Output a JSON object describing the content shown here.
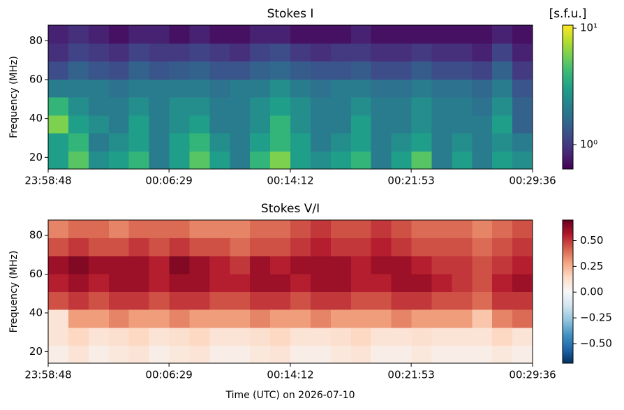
{
  "chart_data": [
    {
      "type": "heatmap",
      "title": "Stokes I",
      "ylabel": "Frequency (MHz)",
      "colormap": "viridis",
      "xlim": [
        0,
        1848
      ],
      "xticks": [
        {
          "value": 0,
          "label": "23:58:48"
        },
        {
          "value": 461,
          "label": "00:06:29"
        },
        {
          "value": 924,
          "label": "00:14:12"
        },
        {
          "value": 1385,
          "label": "00:21:53"
        },
        {
          "value": 1848,
          "label": "00:29:36"
        }
      ],
      "ylim": [
        14,
        88
      ],
      "yticks": [
        20,
        40,
        60,
        80
      ],
      "xbins": [
        0,
        77,
        154,
        231,
        308,
        385,
        462,
        539,
        616,
        693,
        770,
        847,
        924,
        1001,
        1078,
        1155,
        1232,
        1309,
        1386,
        1463,
        1540,
        1617,
        1694,
        1771,
        1848
      ],
      "ybins": [
        14,
        23.25,
        32.5,
        41.75,
        51,
        60.25,
        69.5,
        78.75,
        88
      ],
      "z": [
        [
          3,
          5,
          2.5,
          3,
          4,
          2,
          3,
          5,
          3,
          2,
          4,
          6,
          3,
          2.5,
          3,
          4,
          2,
          3,
          5,
          2,
          3,
          2,
          3,
          2.5
        ],
        [
          3,
          4,
          2,
          2.5,
          3,
          2,
          3,
          4,
          2.5,
          2,
          3,
          4,
          3,
          2,
          2.5,
          3,
          2,
          2.5,
          3,
          2,
          2.5,
          2,
          2.5,
          2
        ],
        [
          6,
          3,
          2.5,
          2,
          3,
          2,
          2.5,
          3,
          2,
          2,
          2.5,
          4,
          2.5,
          2,
          2,
          3,
          2,
          2,
          2.5,
          2,
          2,
          2,
          3,
          1.5
        ],
        [
          4,
          2.5,
          2,
          2,
          2.5,
          2,
          2.5,
          2.5,
          2,
          2,
          2.5,
          3,
          2.5,
          2,
          2,
          2.5,
          2,
          2,
          2.5,
          2,
          2,
          1.8,
          2.5,
          1.5
        ],
        [
          2,
          2,
          2,
          1.8,
          2,
          2,
          2,
          2,
          1.8,
          2,
          2,
          2.5,
          2,
          1.8,
          2,
          2,
          1.8,
          1.8,
          2,
          1.8,
          1.8,
          1.6,
          2,
          1.3
        ],
        [
          1.2,
          1.5,
          1.3,
          1.2,
          1.5,
          1.3,
          1.4,
          1.5,
          1.3,
          1.3,
          1.5,
          1.6,
          1.4,
          1.3,
          1.3,
          1.4,
          1.2,
          1.2,
          1.4,
          1.2,
          1.2,
          1.1,
          1.5,
          1
        ],
        [
          0.9,
          1.1,
          1,
          0.9,
          1.1,
          1,
          1,
          1.1,
          1,
          0.9,
          1.1,
          1.2,
          1,
          0.9,
          1,
          1,
          0.9,
          0.9,
          1,
          0.9,
          0.9,
          0.8,
          1.1,
          0.8
        ],
        [
          0.8,
          0.9,
          0.8,
          0.7,
          0.8,
          0.8,
          0.7,
          0.8,
          0.7,
          0.7,
          0.8,
          0.8,
          0.7,
          0.7,
          0.7,
          0.8,
          0.7,
          0.7,
          0.7,
          0.7,
          0.7,
          0.7,
          0.8,
          0.7
        ]
      ],
      "colorbar": {
        "label": "[s.f.u.]",
        "scale": "log",
        "lim": [
          0.617,
          10.6
        ],
        "ticks": [
          {
            "value": 1,
            "label": "10⁰"
          },
          {
            "value": 10,
            "label": "10¹"
          }
        ]
      }
    },
    {
      "type": "heatmap",
      "title": "Stokes V/I",
      "ylabel": "Frequency (MHz)",
      "xlabel": "Time (UTC) on 2026-07-10",
      "colormap": "RdBu_r",
      "xlim": [
        0,
        1848
      ],
      "xticks": [
        {
          "value": 0,
          "label": "23:58:48"
        },
        {
          "value": 461,
          "label": "00:06:29"
        },
        {
          "value": 924,
          "label": "00:14:12"
        },
        {
          "value": 1385,
          "label": "00:21:53"
        },
        {
          "value": 1848,
          "label": "00:29:36"
        }
      ],
      "ylim": [
        14,
        88
      ],
      "yticks": [
        20,
        40,
        60,
        80
      ],
      "xbins": [
        0,
        77,
        154,
        231,
        308,
        385,
        462,
        539,
        616,
        693,
        770,
        847,
        924,
        1001,
        1078,
        1155,
        1232,
        1309,
        1386,
        1463,
        1540,
        1617,
        1694,
        1771,
        1848
      ],
      "ybins": [
        14,
        23.25,
        32.5,
        41.75,
        51,
        60.25,
        69.5,
        78.75,
        88
      ],
      "z": [
        [
          0.05,
          0.1,
          0.05,
          0.08,
          0.1,
          0.05,
          0.08,
          0.1,
          0.05,
          0.05,
          0.08,
          0.1,
          0.05,
          0.05,
          0.08,
          0.1,
          0.05,
          0.05,
          0.08,
          0.05,
          0.05,
          0.05,
          0.08,
          0.05
        ],
        [
          0.1,
          0.15,
          0.1,
          0.12,
          0.15,
          0.1,
          0.12,
          0.15,
          0.1,
          0.1,
          0.12,
          0.15,
          0.1,
          0.1,
          0.12,
          0.15,
          0.1,
          0.1,
          0.12,
          0.1,
          0.1,
          0.1,
          0.15,
          0.1
        ],
        [
          0.1,
          0.3,
          0.3,
          0.35,
          0.3,
          0.3,
          0.35,
          0.3,
          0.3,
          0.3,
          0.35,
          0.3,
          0.3,
          0.35,
          0.3,
          0.3,
          0.3,
          0.35,
          0.3,
          0.3,
          0.3,
          0.2,
          0.35,
          0.4
        ],
        [
          0.45,
          0.5,
          0.45,
          0.5,
          0.5,
          0.45,
          0.5,
          0.5,
          0.45,
          0.45,
          0.5,
          0.5,
          0.45,
          0.5,
          0.5,
          0.45,
          0.45,
          0.5,
          0.5,
          0.45,
          0.45,
          0.4,
          0.5,
          0.5
        ],
        [
          0.55,
          0.6,
          0.55,
          0.6,
          0.6,
          0.55,
          0.6,
          0.6,
          0.55,
          0.55,
          0.6,
          0.6,
          0.55,
          0.6,
          0.6,
          0.55,
          0.55,
          0.6,
          0.6,
          0.55,
          0.5,
          0.45,
          0.55,
          0.6
        ],
        [
          0.6,
          0.65,
          0.6,
          0.6,
          0.6,
          0.55,
          0.65,
          0.6,
          0.55,
          0.5,
          0.6,
          0.55,
          0.6,
          0.6,
          0.6,
          0.55,
          0.6,
          0.6,
          0.55,
          0.5,
          0.5,
          0.45,
          0.5,
          0.55
        ],
        [
          0.45,
          0.5,
          0.45,
          0.45,
          0.5,
          0.45,
          0.5,
          0.45,
          0.45,
          0.4,
          0.45,
          0.45,
          0.5,
          0.55,
          0.5,
          0.5,
          0.55,
          0.5,
          0.45,
          0.45,
          0.45,
          0.4,
          0.45,
          0.5
        ],
        [
          0.35,
          0.4,
          0.4,
          0.35,
          0.4,
          0.4,
          0.4,
          0.35,
          0.35,
          0.35,
          0.4,
          0.4,
          0.45,
          0.5,
          0.45,
          0.45,
          0.5,
          0.45,
          0.4,
          0.4,
          0.4,
          0.35,
          0.4,
          0.45
        ]
      ],
      "colorbar": {
        "scale": "linear",
        "lim": [
          -0.69,
          0.7
        ],
        "ticks": [
          {
            "value": 0.5,
            "label": "0.50"
          },
          {
            "value": 0.25,
            "label": "0.25"
          },
          {
            "value": 0,
            "label": "0.00"
          },
          {
            "value": -0.25,
            "label": "−0.25"
          },
          {
            "value": -0.5,
            "label": "−0.50"
          }
        ]
      }
    }
  ]
}
